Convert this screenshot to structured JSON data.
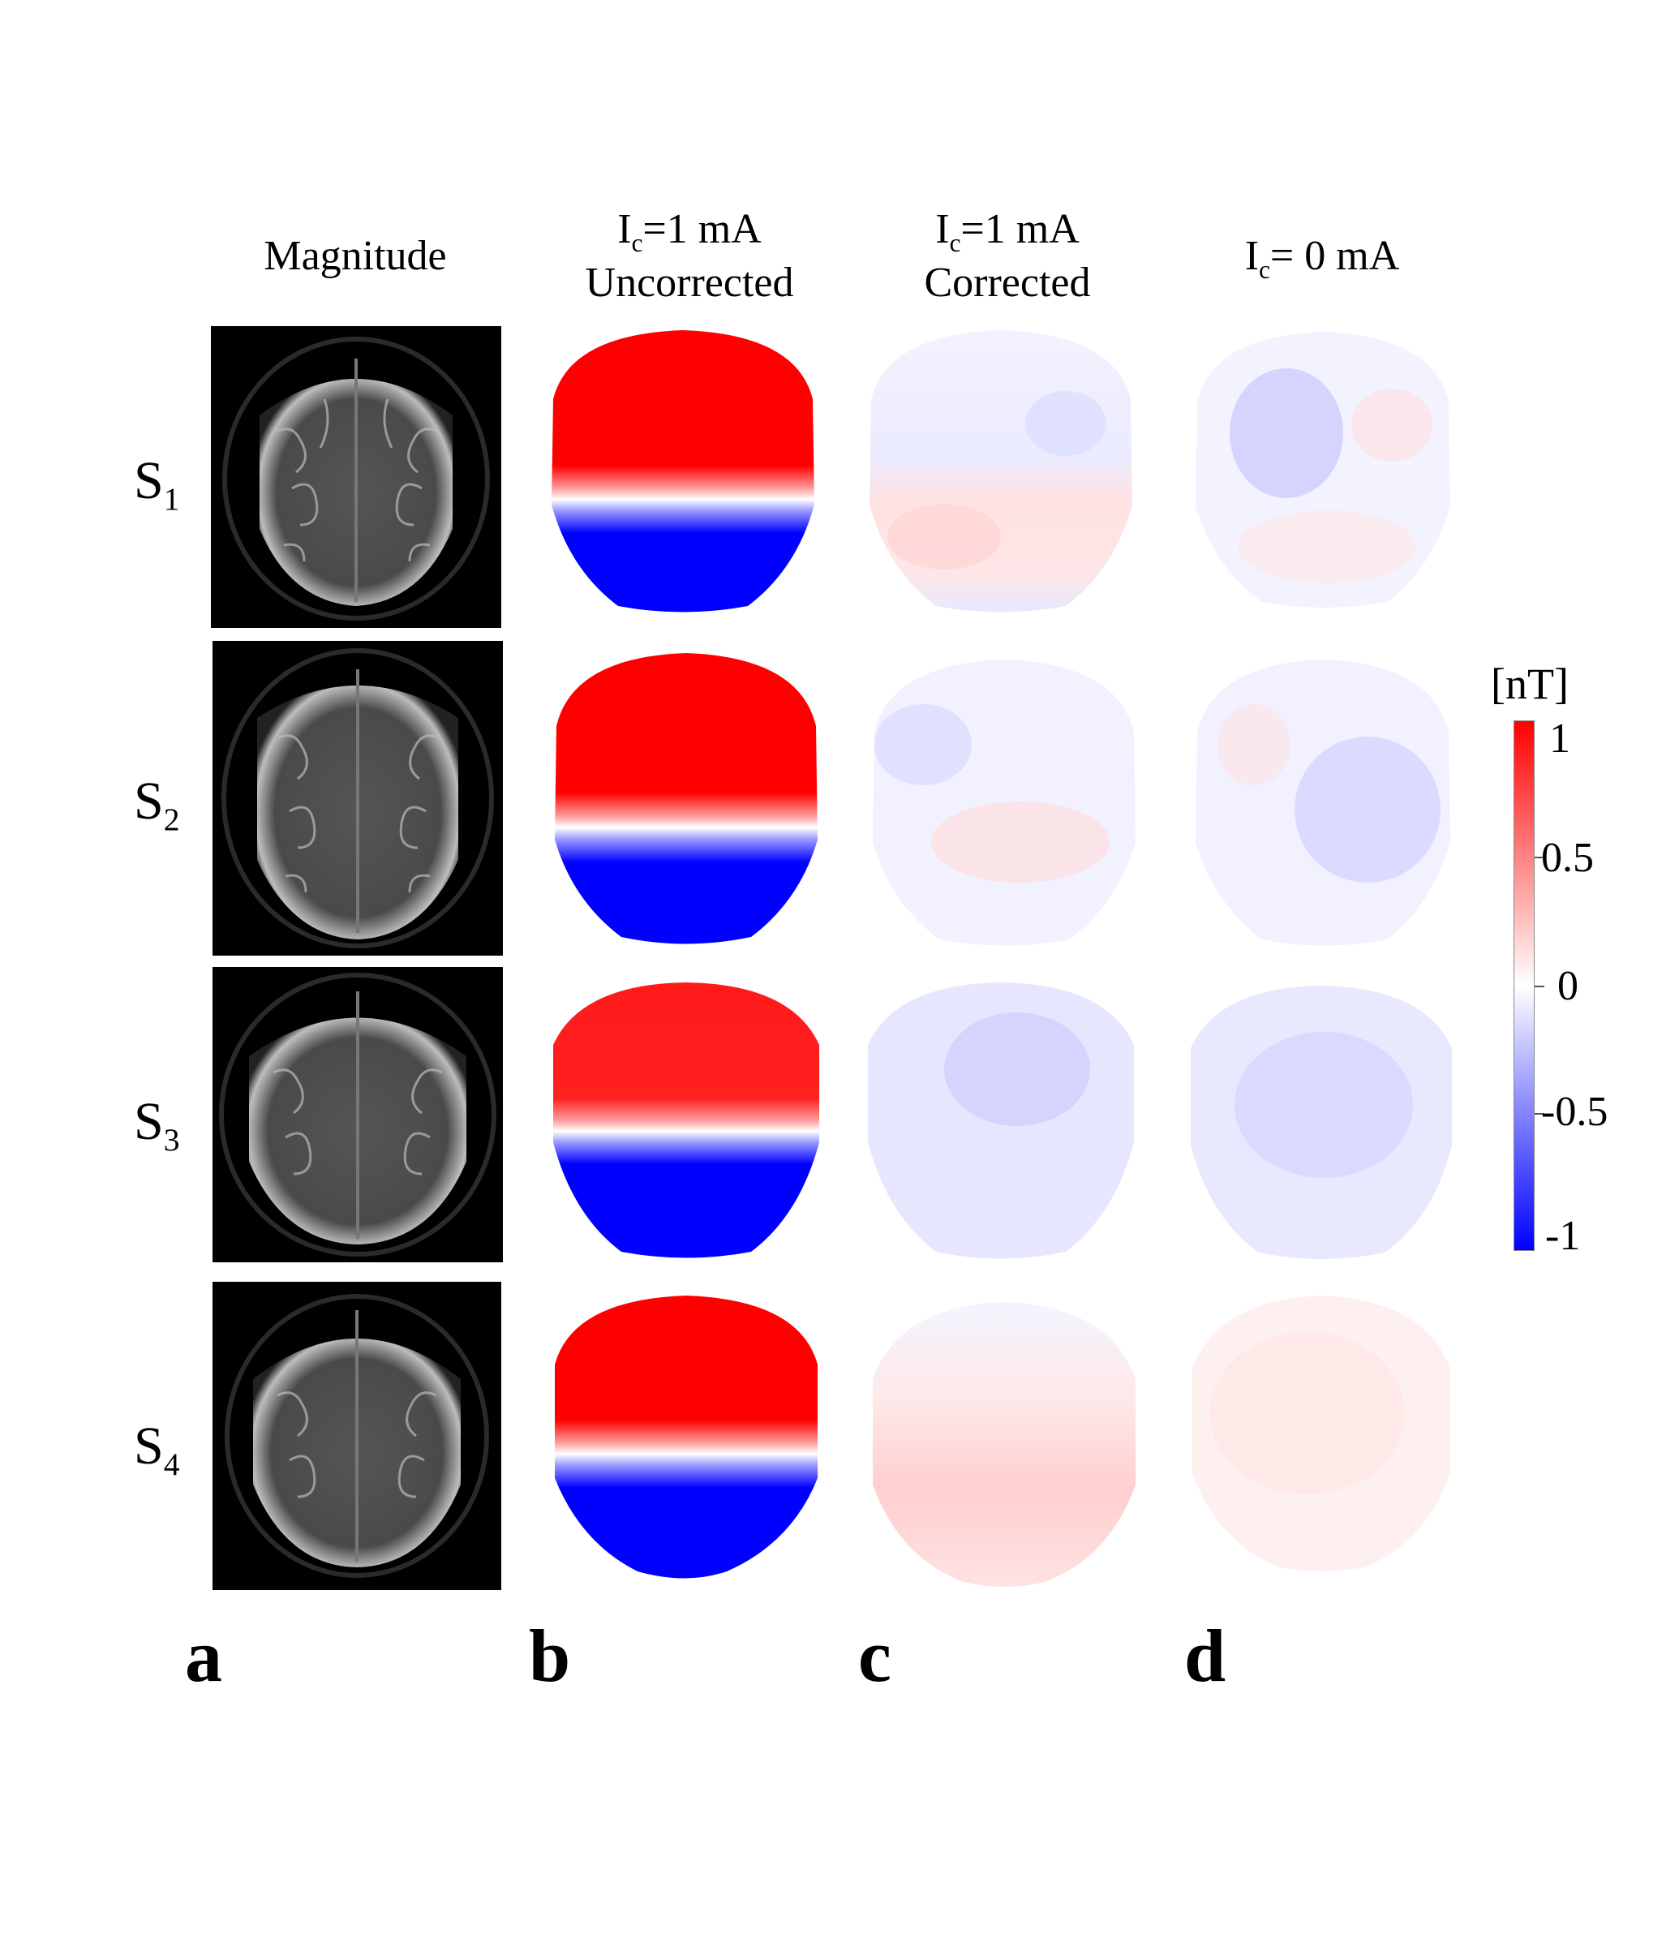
{
  "columns": [
    {
      "id": "a",
      "line1": "",
      "line2": "Magnitude"
    },
    {
      "id": "b",
      "line1_main": "I",
      "line1_sub": "c",
      "line1_rest": "=1 mA",
      "line2": "Uncorrected"
    },
    {
      "id": "c",
      "line1_main": "I",
      "line1_sub": "c",
      "line1_rest": "=1 mA",
      "line2": "Corrected"
    },
    {
      "id": "d",
      "line1_main": "I",
      "line1_sub": "c",
      "line1_rest": "= 0 mA",
      "line2": ""
    }
  ],
  "rows": [
    {
      "main": "S",
      "sub": "1"
    },
    {
      "main": "S",
      "sub": "2"
    },
    {
      "main": "S",
      "sub": "3"
    },
    {
      "main": "S",
      "sub": "4"
    }
  ],
  "panel_letters": [
    "a",
    "b",
    "c",
    "d"
  ],
  "colorbar": {
    "unit": "[nT]",
    "ticks": [
      "1",
      "0.5",
      "0",
      "-0.5",
      "-1"
    ],
    "max_color": "#ff0000",
    "mid_color": "#ffffff",
    "min_color": "#0000ff"
  }
}
